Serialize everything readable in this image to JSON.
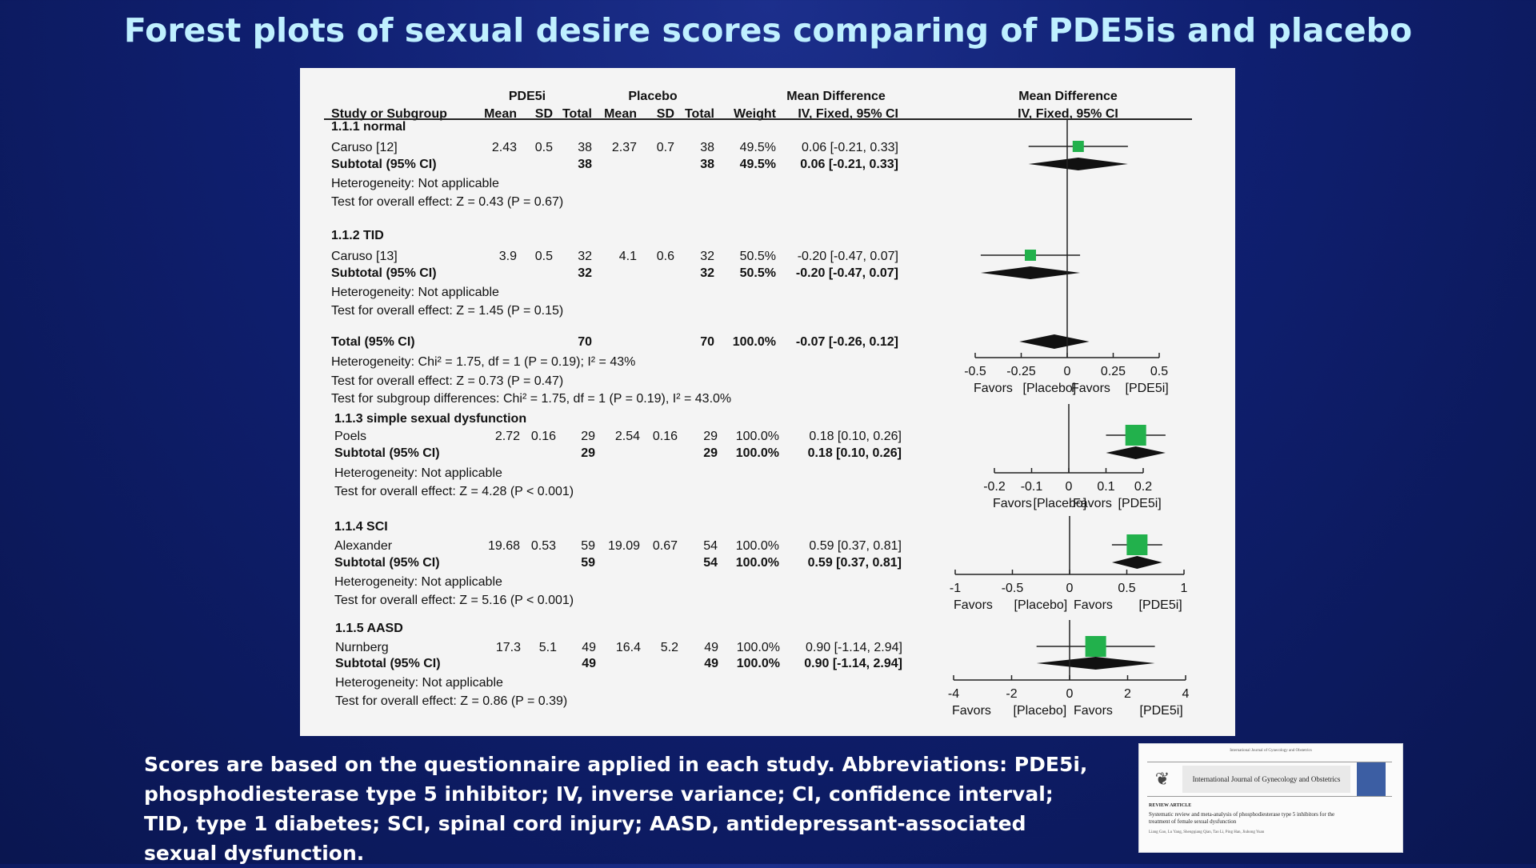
{
  "slide": {
    "title": "Forest plots of sexual desire scores comparing of PDE5is and placebo",
    "caption": "Scores are based on the questionnaire applied in each study. Abbreviations: PDE5i, phosphodiesterase type 5 inhibitor; IV, inverse variance; CI, confidence interval; TID, type 1 diabetes; SCI, spinal cord injury; AASD, antidepressant-associated sexual dysfunction.",
    "thumbnail": {
      "journal": "International Journal of Gynecology and Obstetrics",
      "label": "REVIEW ARTICLE",
      "article_title": "Systematic review and meta-analysis of phosphodiesterase type 5 inhibitors for the treatment of female sexual dysfunction",
      "header_line": "International Journal of Gynecology and Obstetrics",
      "authors": "Liang Gao, Lu Yang, Shengqiang Qian, Tao Li, Ping Han, Jiuhong Yuan"
    }
  },
  "table": {
    "group_headers": {
      "pde5i": "PDE5i",
      "placebo": "Placebo",
      "md": "Mean Difference",
      "md_plot": "Mean Difference"
    },
    "columns": [
      "Study or Subgroup",
      "Mean",
      "SD",
      "Total",
      "Mean",
      "SD",
      "Total",
      "Weight",
      "IV, Fixed, 95% CI",
      "IV, Fixed, 95% CI"
    ],
    "favors_left": "Favors",
    "placebo_tag": "[Placebo]",
    "favors_right": "Favors",
    "pde5i_tag": "[PDE5i]"
  },
  "chart_data": {
    "type": "forest",
    "panels": [
      {
        "axis_ticks": [
          "-0.5",
          "-0.25",
          "0",
          "0.25",
          "0.5"
        ],
        "xlim": [
          -0.5,
          0.5
        ],
        "subgroups": [
          {
            "label": "1.1.1 normal",
            "studies": [
              {
                "study": "Caruso [12]",
                "pde5i_mean": "2.43",
                "pde5i_sd": "0.5",
                "pde5i_total": "38",
                "placebo_mean": "2.37",
                "placebo_sd": "0.7",
                "placebo_total": "38",
                "weight": "49.5%",
                "ci_text": "0.06 [-0.21, 0.33]",
                "md": 0.06,
                "lo": -0.21,
                "hi": 0.33
              }
            ],
            "subtotal": {
              "label": "Subtotal (95% CI)",
              "pde5i_total": "38",
              "placebo_total": "38",
              "weight": "49.5%",
              "ci_text": "0.06 [-0.21, 0.33]",
              "md": 0.06,
              "lo": -0.21,
              "hi": 0.33
            },
            "heterogeneity": "Heterogeneity: Not applicable",
            "test": "Test for overall effect: Z = 0.43 (P = 0.67)"
          },
          {
            "label": "1.1.2 TID",
            "studies": [
              {
                "study": "Caruso [13]",
                "pde5i_mean": "3.9",
                "pde5i_sd": "0.5",
                "pde5i_total": "32",
                "placebo_mean": "4.1",
                "placebo_sd": "0.6",
                "placebo_total": "32",
                "weight": "50.5%",
                "ci_text": "-0.20 [-0.47, 0.07]",
                "md": -0.2,
                "lo": -0.47,
                "hi": 0.07
              }
            ],
            "subtotal": {
              "label": "Subtotal (95% CI)",
              "pde5i_total": "32",
              "placebo_total": "32",
              "weight": "50.5%",
              "ci_text": "-0.20 [-0.47, 0.07]",
              "md": -0.2,
              "lo": -0.47,
              "hi": 0.07
            },
            "heterogeneity": "Heterogeneity: Not applicable",
            "test": "Test for overall effect: Z = 1.45 (P = 0.15)"
          }
        ],
        "total": {
          "label": "Total (95% CI)",
          "pde5i_total": "70",
          "placebo_total": "70",
          "weight": "100.0%",
          "ci_text": "-0.07 [-0.26, 0.12]",
          "md": -0.07,
          "lo": -0.26,
          "hi": 0.12,
          "heterogeneity": "Heterogeneity: Chi² = 1.75, df = 1 (P = 0.19); I² = 43%",
          "test": "Test for overall effect: Z = 0.73 (P = 0.47)",
          "subgroup_test": "Test for subgroup differences: Chi² = 1.75, df = 1 (P = 0.19), I² = 43.0%"
        }
      },
      {
        "axis_ticks": [
          "-0.2",
          "-0.1",
          "0",
          "0.1",
          "0.2"
        ],
        "xlim": [
          -0.2,
          0.2
        ],
        "subgroups": [
          {
            "label": "1.1.3 simple sexual dysfunction",
            "studies": [
              {
                "study": "Poels",
                "pde5i_mean": "2.72",
                "pde5i_sd": "0.16",
                "pde5i_total": "29",
                "placebo_mean": "2.54",
                "placebo_sd": "0.16",
                "placebo_total": "29",
                "weight": "100.0%",
                "ci_text": "0.18 [0.10, 0.26]",
                "md": 0.18,
                "lo": 0.1,
                "hi": 0.26
              }
            ],
            "subtotal": {
              "label": "Subtotal (95% CI)",
              "pde5i_total": "29",
              "placebo_total": "29",
              "weight": "100.0%",
              "ci_text": "0.18 [0.10, 0.26]",
              "md": 0.18,
              "lo": 0.1,
              "hi": 0.26
            },
            "heterogeneity": "Heterogeneity: Not applicable",
            "test": "Test for overall effect: Z = 4.28 (P < 0.001)"
          }
        ]
      },
      {
        "axis_ticks": [
          "-1",
          "-0.5",
          "0",
          "0.5",
          "1"
        ],
        "xlim": [
          -1,
          1
        ],
        "subgroups": [
          {
            "label": "1.1.4 SCI",
            "studies": [
              {
                "study": "Alexander",
                "pde5i_mean": "19.68",
                "pde5i_sd": "0.53",
                "pde5i_total": "59",
                "placebo_mean": "19.09",
                "placebo_sd": "0.67",
                "placebo_total": "54",
                "weight": "100.0%",
                "ci_text": "0.59 [0.37, 0.81]",
                "md": 0.59,
                "lo": 0.37,
                "hi": 0.81
              }
            ],
            "subtotal": {
              "label": "Subtotal (95% CI)",
              "pde5i_total": "59",
              "placebo_total": "54",
              "weight": "100.0%",
              "ci_text": "0.59 [0.37, 0.81]",
              "md": 0.59,
              "lo": 0.37,
              "hi": 0.81
            },
            "heterogeneity": "Heterogeneity: Not applicable",
            "test": "Test for overall effect: Z = 5.16 (P < 0.001)"
          }
        ]
      },
      {
        "axis_ticks": [
          "-4",
          "-2",
          "0",
          "2",
          "4"
        ],
        "xlim": [
          -4,
          4
        ],
        "subgroups": [
          {
            "label": "1.1.5 AASD",
            "studies": [
              {
                "study": "Nurnberg",
                "pde5i_mean": "17.3",
                "pde5i_sd": "5.1",
                "pde5i_total": "49",
                "placebo_mean": "16.4",
                "placebo_sd": "5.2",
                "placebo_total": "49",
                "weight": "100.0%",
                "ci_text": "0.90 [-1.14, 2.94]",
                "md": 0.9,
                "lo": -1.14,
                "hi": 2.94
              }
            ],
            "subtotal": {
              "label": "Subtotal (95% CI)",
              "pde5i_total": "49",
              "placebo_total": "49",
              "weight": "100.0%",
              "ci_text": "0.90 [-1.14, 2.94]",
              "md": 0.9,
              "lo": -1.14,
              "hi": 2.94
            },
            "heterogeneity": "Heterogeneity: Not applicable",
            "test": "Test for overall effect: Z = 0.86 (P = 0.39)"
          }
        ]
      }
    ],
    "colors": {
      "study_marker": "#22b14c",
      "diamond": "#111111"
    }
  }
}
